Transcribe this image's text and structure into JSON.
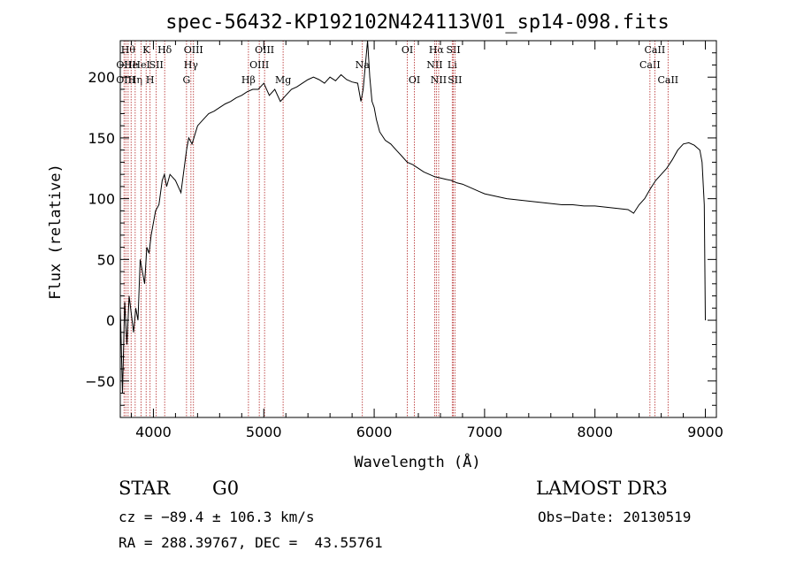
{
  "chart_data": {
    "type": "line",
    "title": "spec-56432-KP192102N424113V01_sp14-098.fits",
    "xlabel": "Wavelength (Å)",
    "ylabel": "Flux (relative)",
    "xlim": [
      3700,
      9100
    ],
    "ylim": [
      -80,
      230
    ],
    "x_ticks": [
      4000,
      5000,
      6000,
      7000,
      8000,
      9000
    ],
    "x_tick_labels": [
      "4000",
      "5000",
      "6000",
      "7000",
      "8000",
      "9000"
    ],
    "y_ticks": [
      -50,
      0,
      50,
      100,
      150,
      200
    ],
    "y_tick_labels": [
      "−50",
      "0",
      "50",
      "100",
      "150",
      "200"
    ],
    "series": [
      {
        "x": [
          3700,
          3720,
          3740,
          3760,
          3780,
          3800,
          3820,
          3840,
          3860,
          3880,
          3900,
          3920,
          3940,
          3960,
          3980,
          4000,
          4020,
          4050,
          4080,
          4100,
          4120,
          4150,
          4200,
          4250,
          4300,
          4320,
          4350,
          4400,
          4450,
          4500,
          4550,
          4600,
          4650,
          4700,
          4750,
          4800,
          4850,
          4900,
          4950,
          5000,
          5050,
          5100,
          5150,
          5200,
          5250,
          5300,
          5350,
          5400,
          5450,
          5500,
          5550,
          5600,
          5650,
          5700,
          5750,
          5800,
          5850,
          5880,
          5900,
          5920,
          5940,
          5960,
          5980,
          6000,
          6020,
          6050,
          6100,
          6150,
          6200,
          6250,
          6300,
          6350,
          6400,
          6450,
          6500,
          6550,
          6600,
          6650,
          6700,
          6750,
          6800,
          6850,
          6900,
          6950,
          7000,
          7100,
          7200,
          7300,
          7400,
          7500,
          7600,
          7700,
          7800,
          7900,
          8000,
          8100,
          8200,
          8300,
          8350,
          8400,
          8450,
          8500,
          8550,
          8600,
          8650,
          8700,
          8750,
          8800,
          8850,
          8900,
          8950,
          8970,
          8990,
          9000
        ],
        "y": [
          10,
          -60,
          15,
          -20,
          20,
          5,
          -10,
          10,
          0,
          50,
          40,
          30,
          60,
          55,
          70,
          80,
          90,
          95,
          115,
          120,
          110,
          120,
          115,
          105,
          140,
          150,
          145,
          160,
          165,
          170,
          172,
          175,
          178,
          180,
          183,
          185,
          188,
          190,
          190,
          195,
          185,
          190,
          180,
          185,
          190,
          192,
          195,
          198,
          200,
          198,
          195,
          200,
          197,
          202,
          198,
          196,
          195,
          180,
          190,
          210,
          240,
          200,
          180,
          175,
          165,
          155,
          148,
          145,
          140,
          135,
          130,
          128,
          125,
          122,
          120,
          118,
          117,
          116,
          115,
          113,
          112,
          110,
          108,
          106,
          104,
          102,
          100,
          99,
          98,
          97,
          96,
          95,
          95,
          94,
          94,
          93,
          92,
          91,
          88,
          95,
          100,
          108,
          115,
          120,
          125,
          132,
          140,
          145,
          146,
          144,
          140,
          130,
          95,
          0
        ]
      }
    ],
    "lines": [
      {
        "x": 3734,
        "label": "OII",
        "row": 1
      },
      {
        "x": 3750,
        "label": "OIII",
        "row": 2
      },
      {
        "x": 3771,
        "label": "Hθ",
        "row": 0
      },
      {
        "x": 3798,
        "label": "He",
        "row": 1
      },
      {
        "x": 3835,
        "label": "Hη",
        "row": 2
      },
      {
        "x": 3889,
        "label": "HeI",
        "row": 1
      },
      {
        "x": 3934,
        "label": "K",
        "row": 0
      },
      {
        "x": 3970,
        "label": "H",
        "row": 2
      },
      {
        "x": 4026,
        "label": "SII",
        "row": 1
      },
      {
        "x": 4102,
        "label": "Hδ",
        "row": 0
      },
      {
        "x": 4300,
        "label": "G",
        "row": 2
      },
      {
        "x": 4340,
        "label": "Hγ",
        "row": 1
      },
      {
        "x": 4363,
        "label": "OIII",
        "row": 0
      },
      {
        "x": 4861,
        "label": "Hβ",
        "row": 2
      },
      {
        "x": 4959,
        "label": "OIII",
        "row": 1
      },
      {
        "x": 5007,
        "label": "OIII",
        "row": 0
      },
      {
        "x": 5175,
        "label": "Mg",
        "row": 2
      },
      {
        "x": 5893,
        "label": "Na",
        "row": 1
      },
      {
        "x": 6300,
        "label": "OI",
        "row": 0
      },
      {
        "x": 6364,
        "label": "OI",
        "row": 2
      },
      {
        "x": 6548,
        "label": "NII",
        "row": 1
      },
      {
        "x": 6563,
        "label": "Hα",
        "row": 0
      },
      {
        "x": 6584,
        "label": "NII",
        "row": 2
      },
      {
        "x": 6707,
        "label": "Li",
        "row": 1
      },
      {
        "x": 6717,
        "label": "SII",
        "row": 0
      },
      {
        "x": 6731,
        "label": "SII",
        "row": 2
      },
      {
        "x": 8498,
        "label": "CaII",
        "row": 1
      },
      {
        "x": 8542,
        "label": "CaII",
        "row": 0
      },
      {
        "x": 8662,
        "label": "CaII",
        "row": 2
      }
    ],
    "line_color": "#b22222",
    "spectrum_color": "#000000",
    "grid": false,
    "legend": "none"
  },
  "info": {
    "class": "STAR",
    "subclass": "G0",
    "survey": "LAMOST DR3",
    "cz": "cz = −89.4 ± 106.3 km/s",
    "obs_date": "Obs−Date: 20130519",
    "radec": "RA = 288.39767, DEC =  43.55761"
  }
}
